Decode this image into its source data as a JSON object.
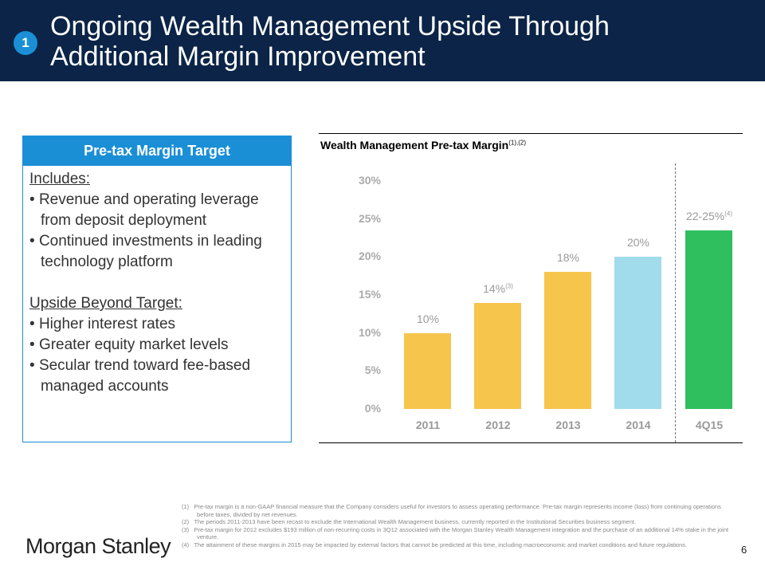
{
  "header": {
    "badge": "1",
    "title_line1": "Ongoing Wealth Management Upside Through",
    "title_line2": "Additional Margin Improvement"
  },
  "target_box": {
    "heading": "Pre-tax Margin Target",
    "includes_label": "Includes:",
    "includes": [
      "Revenue and operating leverage from deposit deployment",
      "Continued investments in leading technology platform"
    ],
    "upside_label": "Upside Beyond Target:",
    "upside": [
      "Higher interest rates",
      "Greater equity market levels",
      "Secular trend toward fee-based managed accounts"
    ]
  },
  "chart_data": {
    "type": "bar",
    "title": "Wealth Management Pre-tax Margin",
    "title_footnote": "(1),(2)",
    "categories": [
      "2011",
      "2012",
      "2013",
      "2014",
      "4Q15"
    ],
    "values": [
      10,
      14,
      18,
      20,
      23.5
    ],
    "labels": [
      "10%",
      "14%",
      "18%",
      "20%",
      "22-25%"
    ],
    "label_footnotes": [
      "",
      "(3)",
      "",
      "",
      "(4)"
    ],
    "colors": [
      "#f5c54c",
      "#f5c54c",
      "#f5c54c",
      "#a0dcec",
      "#2fbf5f"
    ],
    "yticks": [
      "0%",
      "5%",
      "10%",
      "15%",
      "20%",
      "25%",
      "30%"
    ],
    "ylim": [
      0,
      30
    ],
    "xlabel": "",
    "ylabel": ""
  },
  "footnotes": [
    {
      "num": "(1)",
      "text": "Pre-tax margin is a non-GAAP financial measure that the Company considers useful for investors to assess operating performance. Pre-tax margin represents income (loss) from continuing operations before taxes, divided by net revenues."
    },
    {
      "num": "(2)",
      "text": "The periods 2011-2013 have been recast to exclude the International Wealth Management business, currently reported in the Institutional Securities business segment."
    },
    {
      "num": "(3)",
      "text": "Pre-tax margin for 2012 excludes $193 million of non-recurring costs in 3Q12 associated with the Morgan Stanley Wealth Management integration and the purchase of an additional 14% stake in the joint venture."
    },
    {
      "num": "(4)",
      "text": "The attainment of these margins in 2015 may be impacted by external factors that cannot be predicted at this time, including macroeconomic and market conditions and future regulations."
    }
  ],
  "footer": {
    "logo": "Morgan Stanley",
    "page_number": "6"
  }
}
